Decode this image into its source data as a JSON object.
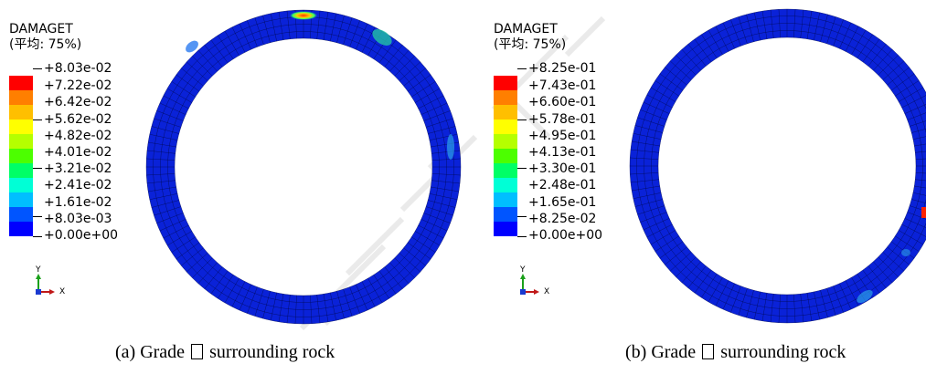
{
  "panels": [
    {
      "legend_title": "DAMAGET",
      "legend_subtitle": "(平均: 75%)",
      "ticks": [
        "+8.03e-02",
        "+7.22e-02",
        "+6.42e-02",
        "+5.62e-02",
        "+4.82e-02",
        "+4.01e-02",
        "+3.21e-02",
        "+2.41e-02",
        "+1.61e-02",
        "+8.03e-03",
        "+0.00e+00"
      ],
      "axis_y": "Y",
      "axis_x": "X",
      "caption_prefix": "(a) Grade",
      "caption_suffix": "surrounding rock"
    },
    {
      "legend_title": "DAMAGET",
      "legend_subtitle": "(平均: 75%)",
      "ticks": [
        "+8.25e-01",
        "+7.43e-01",
        "+6.60e-01",
        "+5.78e-01",
        "+4.95e-01",
        "+4.13e-01",
        "+3.30e-01",
        "+2.48e-01",
        "+1.65e-01",
        "+8.25e-02",
        "+0.00e+00"
      ],
      "axis_y": "Y",
      "axis_x": "X",
      "caption_prefix": "(b) Grade",
      "caption_suffix": "surrounding rock"
    }
  ],
  "colors": {
    "bands": [
      "#ff0000",
      "#ff7f00",
      "#ffbf00",
      "#ffff00",
      "#b5ff00",
      "#4cff00",
      "#00ff66",
      "#00ffd6",
      "#00bfff",
      "#0055ff",
      "#0000ff"
    ],
    "ring": "#0a22d8",
    "mesh": "#000a55",
    "axis_y": "#1aa01a",
    "axis_x": "#c01818",
    "watermark": "#d9d9d9"
  }
}
